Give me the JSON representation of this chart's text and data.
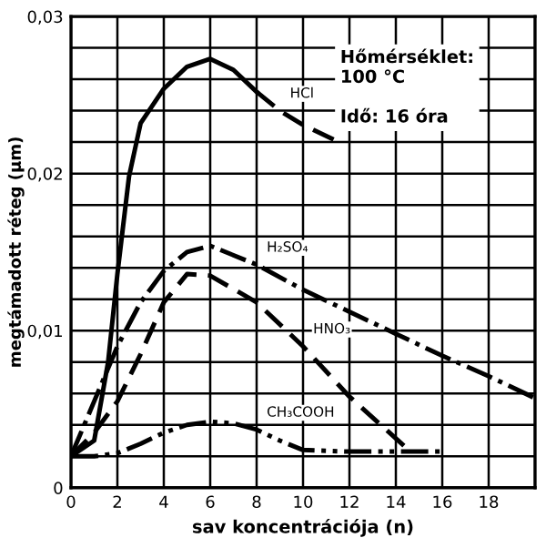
{
  "chart_data": {
    "type": "line",
    "xlabel": "sav koncentrációja (n)",
    "ylabel": "megtámadott réteg (µm)",
    "xlim": [
      0,
      20
    ],
    "ylim": [
      0,
      0.03
    ],
    "xticks": [
      0,
      2,
      4,
      6,
      8,
      10,
      12,
      14,
      16,
      18,
      {
        "value": 20,
        "label": null
      }
    ],
    "yticks": [
      {
        "value": 0,
        "label": "0"
      },
      {
        "value": 0.002,
        "label": null
      },
      {
        "value": 0.004,
        "label": null
      },
      {
        "value": 0.006,
        "label": null
      },
      {
        "value": 0.008,
        "label": null
      },
      {
        "value": 0.01,
        "label": "0,01"
      },
      {
        "value": 0.012,
        "label": null
      },
      {
        "value": 0.014,
        "label": null
      },
      {
        "value": 0.016,
        "label": null
      },
      {
        "value": 0.018,
        "label": null
      },
      {
        "value": 0.02,
        "label": "0,02"
      },
      {
        "value": 0.022,
        "label": null
      },
      {
        "value": 0.024,
        "label": null
      },
      {
        "value": 0.026,
        "label": null
      },
      {
        "value": 0.028,
        "label": null
      },
      {
        "value": 0.03,
        "label": "0,03"
      }
    ],
    "grid": true,
    "legend": false,
    "marker": "none",
    "series": [
      {
        "color": "#000000",
        "line_style": "solid",
        "x": [
          0,
          1,
          1.6,
          2,
          2.5,
          3,
          4,
          5,
          6,
          7,
          8
        ],
        "values": [
          0.002,
          0.003,
          0.008,
          0.0136,
          0.0198,
          0.0232,
          0.0254,
          0.0268,
          0.0273,
          0.0266,
          0.0252
        ]
      },
      {
        "color": "#000000",
        "line_style": "dashed",
        "x": [
          8,
          9,
          10,
          11.4
        ],
        "values": [
          0.0252,
          0.024,
          0.0231,
          0.0221
        ]
      },
      {
        "color": "#000000",
        "line_style": "dashdot",
        "x": [
          0,
          1,
          2,
          3,
          4,
          5,
          6,
          8,
          10,
          12,
          14,
          16,
          18,
          20
        ],
        "values": [
          0.002,
          0.0055,
          0.009,
          0.0118,
          0.0138,
          0.015,
          0.0154,
          0.0142,
          0.0126,
          0.0112,
          0.0098,
          0.0084,
          0.0071,
          0.0057
        ]
      },
      {
        "color": "#000000",
        "line_style": "dashed",
        "x": [
          0,
          1,
          2,
          3,
          4,
          5,
          6,
          8,
          10,
          12,
          14.4
        ],
        "values": [
          0.002,
          0.0035,
          0.0055,
          0.0085,
          0.0118,
          0.0136,
          0.0135,
          0.0118,
          0.009,
          0.0058,
          0.0026
        ]
      },
      {
        "color": "#000000",
        "line_style": "dotted",
        "x": [
          0,
          1,
          2,
          3,
          4,
          5,
          6,
          7,
          8,
          9,
          10,
          12,
          14,
          16
        ],
        "values": [
          0.002,
          0.002,
          0.0022,
          0.0028,
          0.0035,
          0.004,
          0.0042,
          0.0041,
          0.0037,
          0.003,
          0.0024,
          0.0023,
          0.0023,
          0.0023
        ]
      }
    ],
    "annotations": [
      {
        "text": "HCl",
        "x": 9,
        "y": 0.024
      },
      {
        "text": "H₂SO₄",
        "x": 8,
        "y": 0.0142
      },
      {
        "text": "HNO₃",
        "x": 10,
        "y": 0.009
      },
      {
        "text": "CH₃COOH",
        "x": 8,
        "y": 0.0037
      },
      "Hőmérséklet:\n100 °C\n\nIdő: 16 óra"
    ]
  }
}
